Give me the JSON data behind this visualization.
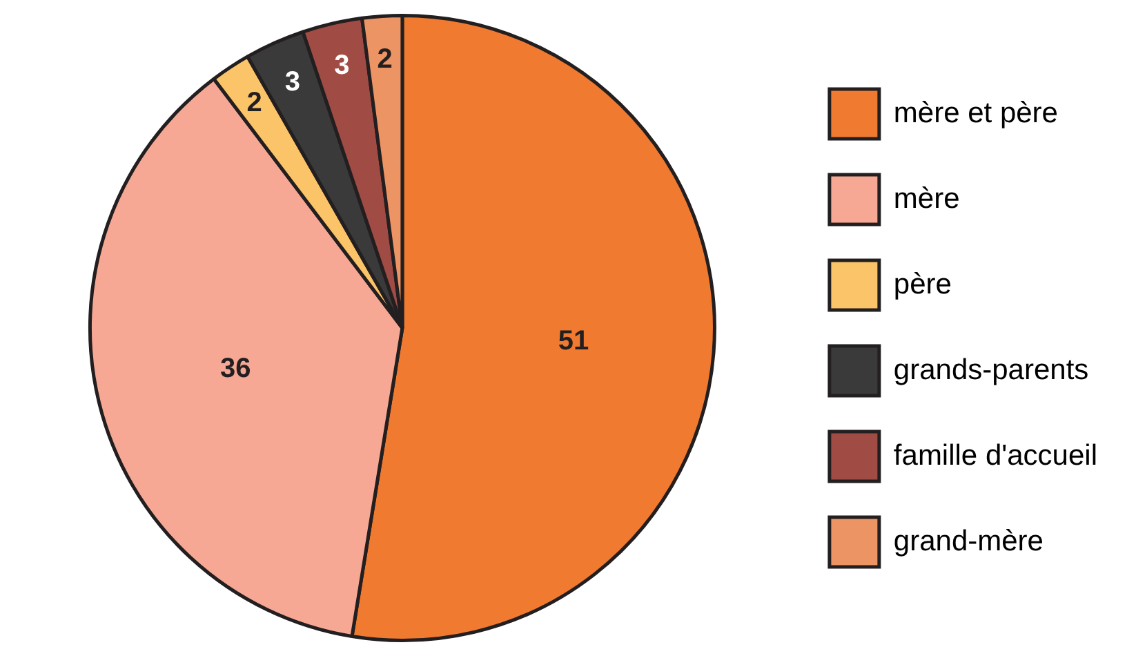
{
  "chart_data": {
    "type": "pie",
    "categories": [
      "mère et père",
      "mère",
      "père",
      "grands-parents",
      "famille d'accueil",
      "grand-mère"
    ],
    "values": [
      51,
      36,
      2,
      3,
      3,
      2
    ],
    "colors": [
      "#f07a30",
      "#f6a894",
      "#fcc468",
      "#3a3a3a",
      "#a04c44",
      "#ec9464"
    ],
    "data_labels": true,
    "legend": "right"
  }
}
